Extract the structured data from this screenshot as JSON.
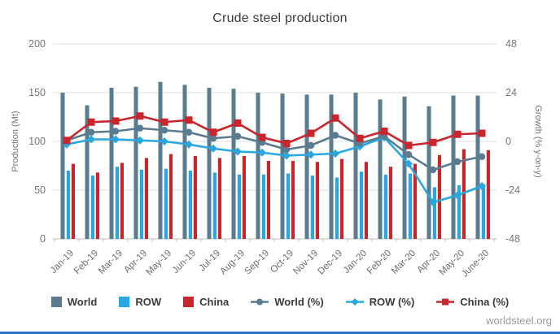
{
  "title": "Crude steel production",
  "source": "worldsteel.org",
  "colors": {
    "world": "#5b7b8e",
    "row": "#29a8e0",
    "china": "#c9252d",
    "grid": "#e6e6e6",
    "axis_line": "#c9c9c9",
    "tick_text": "#767676",
    "title_text": "#3d3d3d",
    "legend_text": "#3b3b3b",
    "source_text": "#9b9b9b",
    "bottom_border": "#2a72c3"
  },
  "chart_data": {
    "type": "combo: grouped bar (left axis, Mt) + line with markers (right axis, % y-on-y)",
    "title": "Crude steel production",
    "categories": [
      "Jan-19",
      "Feb-19",
      "Mar-19",
      "Apr-19",
      "May-19",
      "Jun-19",
      "Jul-19",
      "Aug-19",
      "Sep-19",
      "Oct-19",
      "Nov-19",
      "Dec-19",
      "Jan-20",
      "Feb-20",
      "Mar-20",
      "Apr-20",
      "May-20",
      "June-20"
    ],
    "bar_series": [
      {
        "name": "World",
        "color": "world",
        "values": [
          150,
          137,
          155,
          156,
          161,
          158,
          155,
          154,
          150,
          149,
          148,
          148,
          150,
          143,
          146,
          136,
          147,
          147
        ]
      },
      {
        "name": "ROW",
        "color": "row",
        "values": [
          70,
          65,
          74,
          71,
          72,
          70,
          68,
          66,
          66,
          67,
          65,
          63,
          69,
          66,
          67,
          53,
          55,
          56
        ]
      },
      {
        "name": "China",
        "color": "china",
        "values": [
          77,
          68,
          78,
          83,
          87,
          85,
          83,
          85,
          80,
          80,
          79,
          82,
          79,
          74,
          77,
          86,
          92,
          91
        ]
      }
    ],
    "line_series": [
      {
        "name": "World (%)",
        "color": "world",
        "marker": "circle",
        "values": [
          0.5,
          4.5,
          5,
          6.5,
          5.5,
          4.5,
          1.5,
          2.5,
          -0.5,
          -4,
          -2,
          3,
          -1,
          2.5,
          -6.5,
          -14,
          -10,
          -7.5
        ]
      },
      {
        "name": "ROW (%)",
        "color": "row",
        "marker": "diamond",
        "values": [
          -1.5,
          1,
          1,
          0.5,
          0,
          -1.5,
          -3.5,
          -5,
          -5.5,
          -7,
          -6.5,
          -6,
          -2.5,
          2,
          -11,
          -30,
          -26.5,
          -22
        ]
      },
      {
        "name": "China (%)",
        "color": "china",
        "marker": "square",
        "values": [
          0.5,
          9.5,
          10,
          12.5,
          9.5,
          10.5,
          4.5,
          9,
          2,
          -1,
          4,
          11.5,
          1.5,
          5,
          -2,
          -0.5,
          3.5,
          4
        ]
      }
    ],
    "left_axis": {
      "label": "Production (Mt)",
      "min": 0,
      "max": 200,
      "ticks": [
        0,
        50,
        100,
        150,
        200
      ]
    },
    "right_axis": {
      "label": "Growth (% y-on-y)",
      "min": -48,
      "max": 48,
      "ticks": [
        -48,
        -24,
        0,
        24,
        48
      ]
    },
    "grid": true,
    "legend_position": "bottom"
  }
}
